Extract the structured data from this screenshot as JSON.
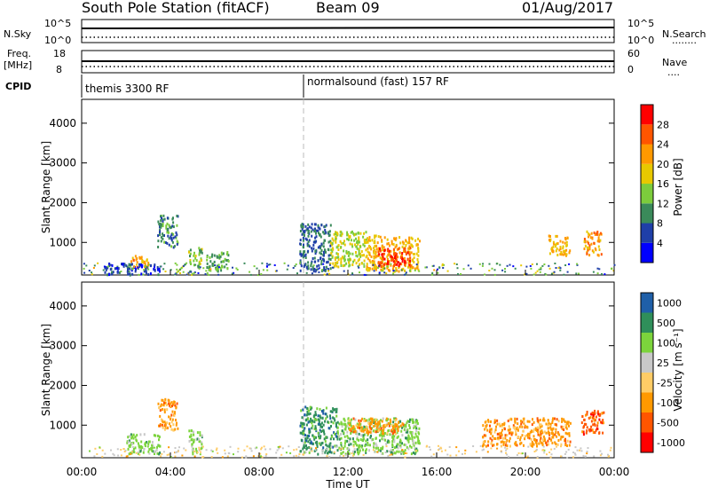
{
  "header": {
    "station": "South Pole Station (fitACF)",
    "beam": "Beam 09",
    "date": "01/Aug/2017"
  },
  "nsky_panel": {
    "left_label": "N.Sky",
    "left_ticks": [
      "10^5",
      "10^0"
    ],
    "right_ticks": [
      "10^5",
      "10^0"
    ],
    "right_label": "N.Search",
    "right_legend": "........"
  },
  "freq_panel": {
    "left_label_1": "Freq.",
    "left_label_2": "[MHz]",
    "left_ticks": [
      "18",
      "8"
    ],
    "right_ticks": [
      "60",
      "0"
    ],
    "right_label": "Nave",
    "right_legend": "....",
    "cpid_label": "CPID"
  },
  "cpid_segments": [
    {
      "text": "themis 3300 RF",
      "start_hour": 0
    },
    {
      "text": "normalsound (fast) 157 RF",
      "start_hour": 10
    }
  ],
  "colors": {
    "power_scale": [
      "#0000ff",
      "#1f3fa8",
      "#3a8a5a",
      "#7ccc3c",
      "#e8c800",
      "#ff9900",
      "#ff5500",
      "#ff0000"
    ],
    "velocity_scale": [
      "#ff0000",
      "#ff5500",
      "#ff9900",
      "#ffcc66",
      "#c8c8c8",
      "#7cd43c",
      "#2f8f5a",
      "#1f5fa8",
      "#0000cc"
    ]
  },
  "chart_data": [
    {
      "type": "heatmap",
      "title": "",
      "xlabel": "",
      "ylabel": "Slant Range [km]",
      "xlim": [
        0,
        24
      ],
      "ylim": [
        180,
        4600
      ],
      "yticks": [
        "1000",
        "2000",
        "3000",
        "4000"
      ],
      "colorbar_label": "Power [dB]",
      "colorbar_ticks": [
        "4",
        "8",
        "12",
        "16",
        "20",
        "24",
        "28"
      ],
      "colorbar_range": [
        0,
        32
      ],
      "series": [
        {
          "hours": [
            1.0,
            3.5
          ],
          "range_km": [
            200,
            500
          ],
          "value": 6
        },
        {
          "hours": [
            2.2,
            3.0
          ],
          "range_km": [
            400,
            700
          ],
          "value": 22
        },
        {
          "hours": [
            3.4,
            4.3
          ],
          "range_km": [
            900,
            1700
          ],
          "value": 10
        },
        {
          "hours": [
            4.8,
            5.4
          ],
          "range_km": [
            400,
            900
          ],
          "value": 14
        },
        {
          "hours": [
            5.6,
            6.6
          ],
          "range_km": [
            300,
            800
          ],
          "value": 12
        },
        {
          "hours": [
            9.8,
            11.2
          ],
          "range_km": [
            300,
            1500
          ],
          "value": 8
        },
        {
          "hours": [
            11.2,
            12.8
          ],
          "range_km": [
            400,
            1300
          ],
          "value": 16
        },
        {
          "hours": [
            12.8,
            15.2
          ],
          "range_km": [
            300,
            1200
          ],
          "value": 20
        },
        {
          "hours": [
            13.3,
            14.8
          ],
          "range_km": [
            400,
            900
          ],
          "value": 28
        },
        {
          "hours": [
            21.0,
            22.0
          ],
          "range_km": [
            700,
            1200
          ],
          "value": 20
        },
        {
          "hours": [
            22.6,
            23.4
          ],
          "range_km": [
            700,
            1300
          ],
          "value": 22
        }
      ]
    },
    {
      "type": "heatmap",
      "title": "",
      "xlabel": "Time UT",
      "ylabel": "Slant Range [km]",
      "xlim": [
        0,
        24
      ],
      "ylim": [
        180,
        4600
      ],
      "xticks": [
        "00:00",
        "04:00",
        "08:00",
        "12:00",
        "16:00",
        "20:00",
        "00:00"
      ],
      "yticks": [
        "1000",
        "2000",
        "3000",
        "4000"
      ],
      "colorbar_label": "Velocity [m s⁻¹]",
      "colorbar_ticks": [
        "1000",
        "500",
        "100",
        "25",
        "-25",
        "-100",
        "-500",
        "-1000"
      ],
      "series": [
        {
          "hours": [
            2.0,
            3.5
          ],
          "range_km": [
            300,
            800
          ],
          "value": 100
        },
        {
          "hours": [
            3.4,
            4.3
          ],
          "range_km": [
            900,
            1700
          ],
          "value": -100
        },
        {
          "hours": [
            4.8,
            5.4
          ],
          "range_km": [
            300,
            900
          ],
          "value": 100
        },
        {
          "hours": [
            9.8,
            11.5
          ],
          "range_km": [
            300,
            1500
          ],
          "value": 500
        },
        {
          "hours": [
            11.5,
            15.2
          ],
          "range_km": [
            300,
            1200
          ],
          "value": 100
        },
        {
          "hours": [
            12.0,
            14.5
          ],
          "range_km": [
            800,
            1200
          ],
          "value": -100
        },
        {
          "hours": [
            18.0,
            22.0
          ],
          "range_km": [
            500,
            1200
          ],
          "value": -100
        },
        {
          "hours": [
            22.5,
            23.5
          ],
          "range_km": [
            800,
            1400
          ],
          "value": -500
        }
      ]
    }
  ]
}
